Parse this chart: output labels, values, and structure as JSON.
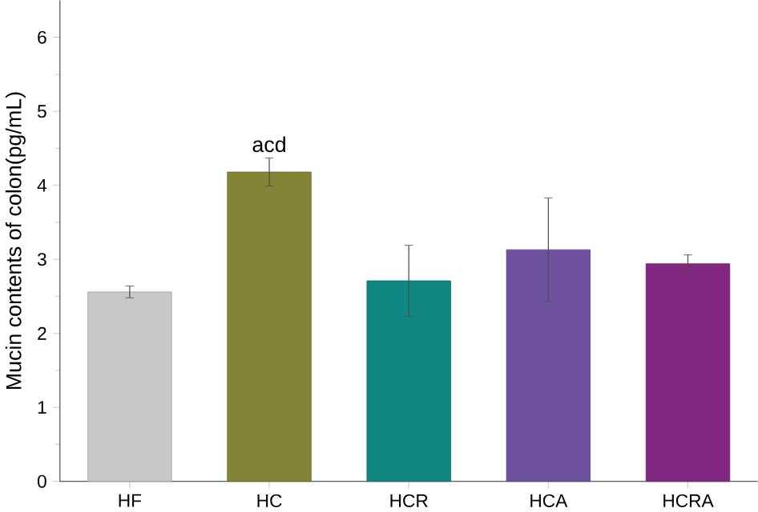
{
  "chart_data": {
    "type": "bar",
    "ylabel": "Mucin contents of colon(pg/mL)",
    "categories": [
      "HF",
      "HC",
      "HCR",
      "HCA",
      "HCRA"
    ],
    "values": [
      2.56,
      4.18,
      2.71,
      3.13,
      2.94
    ],
    "errors": [
      0.08,
      0.19,
      0.48,
      0.7,
      0.12
    ],
    "colors": [
      "#c8c8c8",
      "#838436",
      "#118784",
      "#6e52a0",
      "#822882"
    ],
    "ylim": [
      0,
      6.5
    ],
    "yticks": [
      0,
      1,
      2,
      3,
      4,
      5,
      6
    ],
    "annotations": [
      {
        "text": "acd",
        "x": "HC",
        "y": 4.37
      }
    ]
  }
}
